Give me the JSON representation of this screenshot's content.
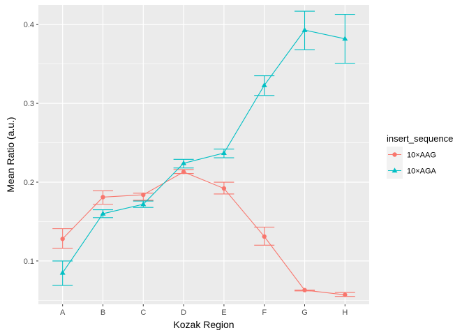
{
  "chart_data": {
    "type": "line",
    "xlabel": "Kozak Region",
    "ylabel": "Mean Ratio (a.u.)",
    "categories": [
      "A",
      "B",
      "C",
      "D",
      "E",
      "F",
      "G",
      "H"
    ],
    "ylim": [
      0.045,
      0.425
    ],
    "yticks": [
      0.1,
      0.2,
      0.3,
      0.4
    ],
    "yticklabels": [
      "0.1",
      "0.2",
      "0.3",
      "0.4"
    ],
    "grid": true,
    "error_bars": true,
    "legend": {
      "title": "insert_sequence",
      "position": "right"
    },
    "series": [
      {
        "name": "10×AAG",
        "color": "#F8766D",
        "marker": "circle",
        "values": [
          0.128,
          0.181,
          0.184,
          0.213,
          0.192,
          0.131,
          0.063,
          0.057
        ],
        "err_low": [
          0.116,
          0.172,
          0.177,
          0.211,
          0.185,
          0.12,
          0.062,
          0.055
        ],
        "err_high": [
          0.141,
          0.189,
          0.186,
          0.216,
          0.2,
          0.143,
          0.063,
          0.06
        ]
      },
      {
        "name": "10×AGA",
        "color": "#00BFC4",
        "marker": "triangle",
        "values": [
          0.085,
          0.16,
          0.172,
          0.224,
          0.237,
          0.323,
          0.393,
          0.382
        ],
        "err_low": [
          0.069,
          0.155,
          0.168,
          0.218,
          0.231,
          0.31,
          0.368,
          0.351
        ],
        "err_high": [
          0.1,
          0.165,
          0.176,
          0.229,
          0.242,
          0.335,
          0.417,
          0.413
        ]
      }
    ]
  }
}
